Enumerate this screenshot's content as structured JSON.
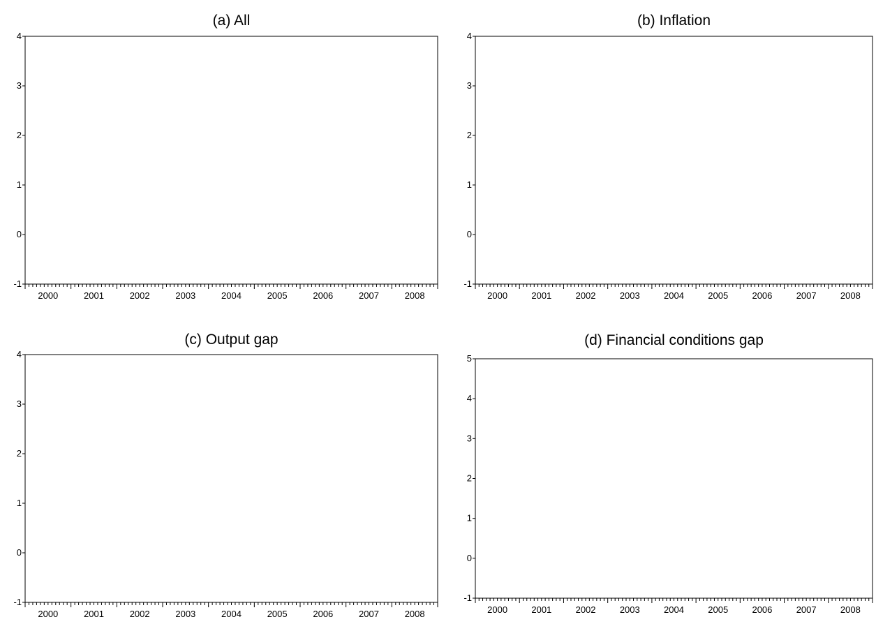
{
  "chart_data": [
    {
      "type": "line",
      "title": "(a) All",
      "xlabel": "",
      "ylabel": "",
      "ylim": [
        -1,
        4
      ],
      "yticks": [
        -1,
        0,
        1,
        2,
        3,
        4
      ],
      "xlim": [
        2000,
        2009
      ],
      "xticks": [
        "2000",
        "2001",
        "2002",
        "2003",
        "2004",
        "2005",
        "2006",
        "2007",
        "2008"
      ],
      "minor_ticks_per_year": 12,
      "series": [],
      "grid": false
    },
    {
      "type": "line",
      "title": "(b) Inflation",
      "xlabel": "",
      "ylabel": "",
      "ylim": [
        -1,
        4
      ],
      "yticks": [
        -1,
        0,
        1,
        2,
        3,
        4
      ],
      "xlim": [
        2000,
        2009
      ],
      "xticks": [
        "2000",
        "2001",
        "2002",
        "2003",
        "2004",
        "2005",
        "2006",
        "2007",
        "2008"
      ],
      "minor_ticks_per_year": 12,
      "series": [],
      "grid": false
    },
    {
      "type": "line",
      "title": "(c) Output gap",
      "xlabel": "",
      "ylabel": "",
      "ylim": [
        -1,
        4
      ],
      "yticks": [
        -1,
        0,
        1,
        2,
        3,
        4
      ],
      "xlim": [
        2000,
        2009
      ],
      "xticks": [
        "2000",
        "2001",
        "2002",
        "2003",
        "2004",
        "2005",
        "2006",
        "2007",
        "2008"
      ],
      "minor_ticks_per_year": 12,
      "series": [],
      "grid": false
    },
    {
      "type": "line",
      "title": "(d) Financial conditions gap",
      "xlabel": "",
      "ylabel": "",
      "ylim": [
        -1,
        5
      ],
      "yticks": [
        -1,
        0,
        1,
        2,
        3,
        4,
        5
      ],
      "xlim": [
        2000,
        2009
      ],
      "xticks": [
        "2000",
        "2001",
        "2002",
        "2003",
        "2004",
        "2005",
        "2006",
        "2007",
        "2008"
      ],
      "minor_ticks_per_year": 12,
      "series": [],
      "grid": false
    }
  ]
}
